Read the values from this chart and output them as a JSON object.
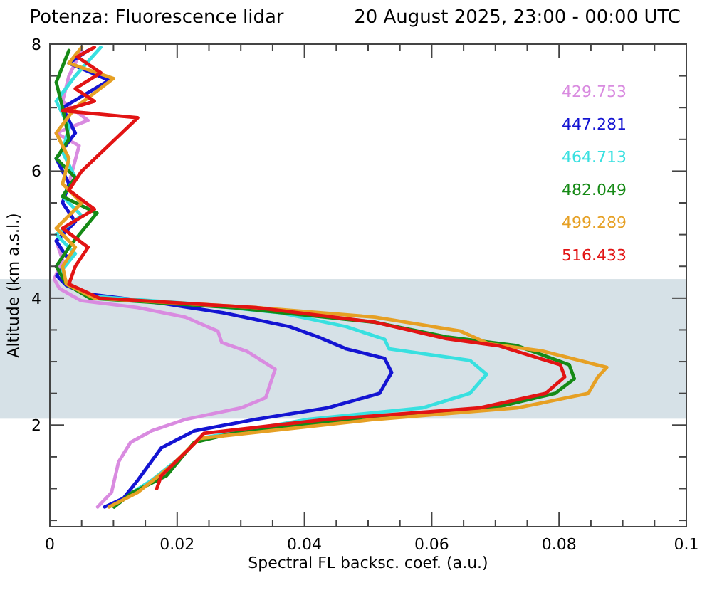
{
  "chart_data": {
    "type": "line",
    "title": "Potenza: Fluorescence lidar",
    "subtitle": "20 August 2025, 23:00 - 00:00 UTC",
    "xlabel": "Spectral FL backsc. coef. (a.u.)",
    "ylabel": "Altitude (km a.s.l.)",
    "xlim": [
      0,
      0.1
    ],
    "xticks": [
      0,
      {
        "value": 0.005,
        "label": null
      },
      0.02,
      {
        "value": 0.01,
        "label": null
      },
      {
        "value": 0.015,
        "label": null
      },
      {
        "value": 0.025,
        "label": null
      },
      0.04,
      {
        "value": 0.03,
        "label": null
      },
      {
        "value": 0.035,
        "label": null
      },
      {
        "value": 0.045,
        "label": null
      },
      0.06,
      {
        "value": 0.05,
        "label": null
      },
      {
        "value": 0.055,
        "label": null
      },
      {
        "value": 0.065,
        "label": null
      },
      0.08,
      {
        "value": 0.07,
        "label": null
      },
      {
        "value": 0.075,
        "label": null
      },
      {
        "value": 0.085,
        "label": null
      },
      0.1,
      {
        "value": 0.09,
        "label": null
      },
      {
        "value": 0.095,
        "label": null
      }
    ],
    "ylim": [
      0.4,
      8
    ],
    "yticks": [
      2,
      4,
      6,
      8,
      {
        "value": 0.5,
        "label": null
      },
      {
        "value": 1,
        "label": null
      },
      {
        "value": 1.5,
        "label": null
      },
      {
        "value": 2.5,
        "label": null
      },
      {
        "value": 3,
        "label": null
      },
      {
        "value": 3.5,
        "label": null
      },
      {
        "value": 4.5,
        "label": null
      },
      {
        "value": 5,
        "label": null
      },
      {
        "value": 5.5,
        "label": null
      },
      {
        "value": 6.5,
        "label": null
      },
      {
        "value": 7,
        "label": null
      },
      {
        "value": 7.5,
        "label": null
      }
    ],
    "orientation": "horizontal",
    "legend": "top right",
    "grid": false,
    "bands": [
      {
        "axis": "y",
        "from": 2.1,
        "to": 4.3,
        "color": "#d6e1e7"
      }
    ],
    "series": [
      {
        "name": "429.753",
        "color": "#d98be0",
        "values": [
          0.0075,
          0.0097,
          0.0108,
          0.0127,
          0.016,
          0.0213,
          0.03,
          0.0339,
          0.0354,
          0.031,
          0.027,
          0.0264,
          0.0213,
          0.0138,
          0.0049,
          0.0015,
          0.0007,
          0.002,
          0.001,
          0.004,
          0.002,
          0.003,
          0.0046,
          0.001,
          0.006,
          0.002,
          0.003,
          0.005
        ],
        "x": [
          0.71,
          0.94,
          1.42,
          1.73,
          1.91,
          2.09,
          2.27,
          2.43,
          2.88,
          3.16,
          3.3,
          3.48,
          3.7,
          3.85,
          3.96,
          4.15,
          4.3,
          4.6,
          4.9,
          5.2,
          5.5,
          5.8,
          6.4,
          6.6,
          6.8,
          7.1,
          7.5,
          7.9
        ]
      },
      {
        "name": "447.281",
        "color": "#1414d2",
        "values": [
          0.0086,
          0.0116,
          0.0138,
          0.0175,
          0.0227,
          0.0324,
          0.0436,
          0.0518,
          0.0537,
          0.0526,
          0.0466,
          0.0421,
          0.0377,
          0.0272,
          0.0175,
          0.0056,
          0.0026,
          0.0011,
          0.003,
          0.001,
          0.004,
          0.002,
          0.003,
          0.001,
          0.004,
          0.002,
          0.0093,
          0.003,
          0.006
        ],
        "x": [
          0.71,
          0.85,
          1.13,
          1.64,
          1.91,
          2.09,
          2.27,
          2.5,
          2.83,
          3.05,
          3.2,
          3.39,
          3.55,
          3.77,
          3.92,
          4.07,
          4.2,
          4.35,
          4.6,
          4.9,
          5.2,
          5.5,
          5.8,
          6.2,
          6.6,
          7.0,
          7.43,
          7.7,
          7.9
        ]
      },
      {
        "name": "464.713",
        "color": "#38e0e0",
        "values": [
          0.013,
          0.016,
          0.0205,
          0.0235,
          0.0406,
          0.0585,
          0.066,
          0.0686,
          0.066,
          0.0533,
          0.0526,
          0.0466,
          0.0362,
          0.0213,
          0.0063,
          0.0026,
          0.0019,
          0.004,
          0.001,
          0.005,
          0.002,
          0.004,
          0.002,
          0.003,
          0.001,
          0.004,
          0.008
        ],
        "x": [
          0.94,
          1.13,
          1.49,
          1.79,
          2.09,
          2.27,
          2.5,
          2.8,
          3.02,
          3.2,
          3.35,
          3.55,
          3.77,
          3.92,
          4.03,
          4.22,
          4.44,
          4.7,
          5.0,
          5.3,
          5.6,
          5.9,
          6.3,
          6.7,
          7.1,
          7.5,
          7.95
        ]
      },
      {
        "name": "482.049",
        "color": "#168a16",
        "values": [
          0.0101,
          0.013,
          0.0183,
          0.0227,
          0.0287,
          0.0473,
          0.0697,
          0.0794,
          0.0824,
          0.0816,
          0.0734,
          0.0623,
          0.0511,
          0.0287,
          0.0063,
          0.0026,
          0.001,
          0.003,
          0.0074,
          0.002,
          0.004,
          0.001,
          0.003,
          0.002,
          0.001,
          0.003
        ],
        "x": [
          0.71,
          0.94,
          1.2,
          1.73,
          1.87,
          2.09,
          2.27,
          2.5,
          2.73,
          2.95,
          3.25,
          3.39,
          3.62,
          3.85,
          4.0,
          4.22,
          4.5,
          4.8,
          5.34,
          5.6,
          5.9,
          6.2,
          6.5,
          7.0,
          7.4,
          7.9
        ]
      },
      {
        "name": "499.289",
        "color": "#e6a024",
        "values": [
          0.0093,
          0.0138,
          0.019,
          0.0235,
          0.0511,
          0.0734,
          0.0846,
          0.0861,
          0.0875,
          0.0772,
          0.069,
          0.0645,
          0.0511,
          0.0324,
          0.007,
          0.0026,
          0.002,
          0.004,
          0.001,
          0.005,
          0.002,
          0.003,
          0.001,
          0.004,
          0.01,
          0.003,
          0.005
        ],
        "x": [
          0.71,
          0.94,
          1.35,
          1.79,
          2.09,
          2.27,
          2.5,
          2.76,
          2.91,
          3.17,
          3.28,
          3.48,
          3.7,
          3.85,
          4.0,
          4.22,
          4.5,
          4.8,
          5.1,
          5.5,
          5.8,
          6.2,
          6.6,
          7.0,
          7.46,
          7.7,
          7.95
        ]
      },
      {
        "name": "516.433",
        "color": "#e21414",
        "values": [
          0.0168,
          0.0175,
          0.022,
          0.0242,
          0.0436,
          0.0675,
          0.0779,
          0.0809,
          0.0802,
          0.0705,
          0.0623,
          0.0511,
          0.0324,
          0.0078,
          0.003,
          0.004,
          0.006,
          0.002,
          0.007,
          0.003,
          0.005,
          0.0138,
          0.002,
          0.007,
          0.004,
          0.008,
          0.0043,
          0.007
        ],
        "x": [
          1.0,
          1.2,
          1.64,
          1.87,
          2.09,
          2.27,
          2.5,
          2.76,
          2.95,
          3.25,
          3.36,
          3.62,
          3.85,
          4.0,
          4.22,
          4.5,
          4.8,
          5.1,
          5.4,
          5.7,
          6.0,
          6.84,
          6.95,
          7.1,
          7.3,
          7.55,
          7.8,
          7.95
        ]
      }
    ]
  }
}
